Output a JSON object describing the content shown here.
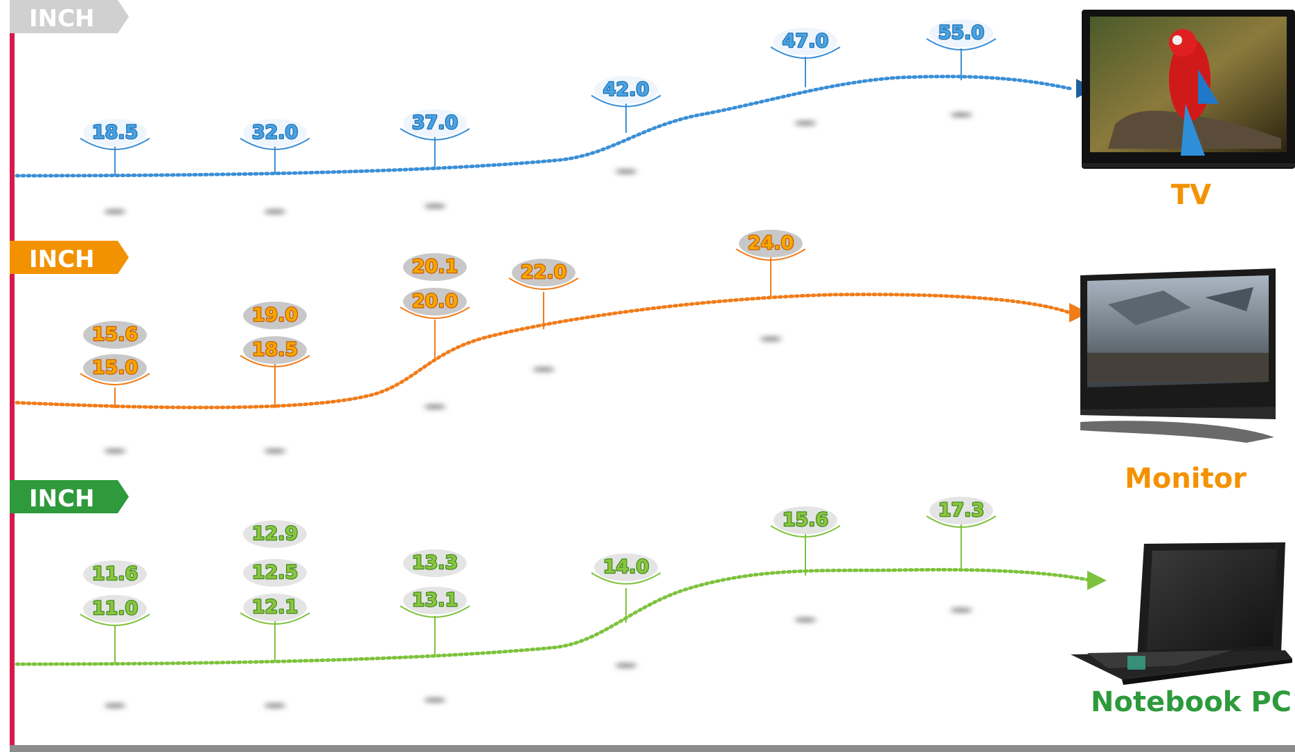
{
  "rows": [
    {
      "tag": "INCH",
      "device": "TV",
      "colors": {
        "tag": "#d0d0d0",
        "text": "#4aa3e0",
        "line": "#3a8fd6",
        "arrow": "#1f5f9e",
        "label": "#f39200",
        "pill": "#eef5fc",
        "textStroke": "#1e6fb5"
      },
      "points": [
        {
          "values": [
            "18.5"
          ]
        },
        {
          "values": [
            "32.0"
          ]
        },
        {
          "values": [
            "37.0"
          ]
        },
        {
          "values": [
            "42.0"
          ]
        },
        {
          "values": [
            "47.0"
          ]
        },
        {
          "values": [
            "55.0"
          ]
        }
      ]
    },
    {
      "tag": "INCH",
      "device": "Monitor",
      "colors": {
        "tag": "#f39200",
        "text": "#f7a600",
        "line": "#f07c1a",
        "arrow": "#f07c1a",
        "label": "#f39200",
        "pill": "#c8c8c8",
        "textStroke": "#c85a00"
      },
      "points": [
        {
          "values": [
            "15.6",
            "15.0"
          ]
        },
        {
          "values": [
            "19.0",
            "18.5"
          ]
        },
        {
          "values": [
            "20.1",
            "20.0"
          ]
        },
        {
          "values": [
            "22.0"
          ]
        },
        {
          "values": [
            "24.0"
          ]
        }
      ]
    },
    {
      "tag": "INCH",
      "device": "Notebook PC",
      "colors": {
        "tag": "#2e9a3c",
        "text": "#8bc53f",
        "line": "#7dc23c",
        "arrow": "#7dc23c",
        "label": "#2e9a3c",
        "pill": "#e4e4e4",
        "textStroke": "#3f8a1f"
      },
      "points": [
        {
          "values": [
            "11.6",
            "11.0"
          ]
        },
        {
          "values": [
            "12.9",
            "12.5",
            "12.1"
          ]
        },
        {
          "values": [
            "13.3",
            "13.1"
          ]
        },
        {
          "values": [
            "14.0"
          ]
        },
        {
          "values": [
            "15.6"
          ]
        },
        {
          "values": [
            "17.3"
          ]
        }
      ]
    }
  ],
  "axis_color": "#d6194a",
  "icons": [
    "tv-icon",
    "monitor-icon",
    "laptop-icon"
  ]
}
